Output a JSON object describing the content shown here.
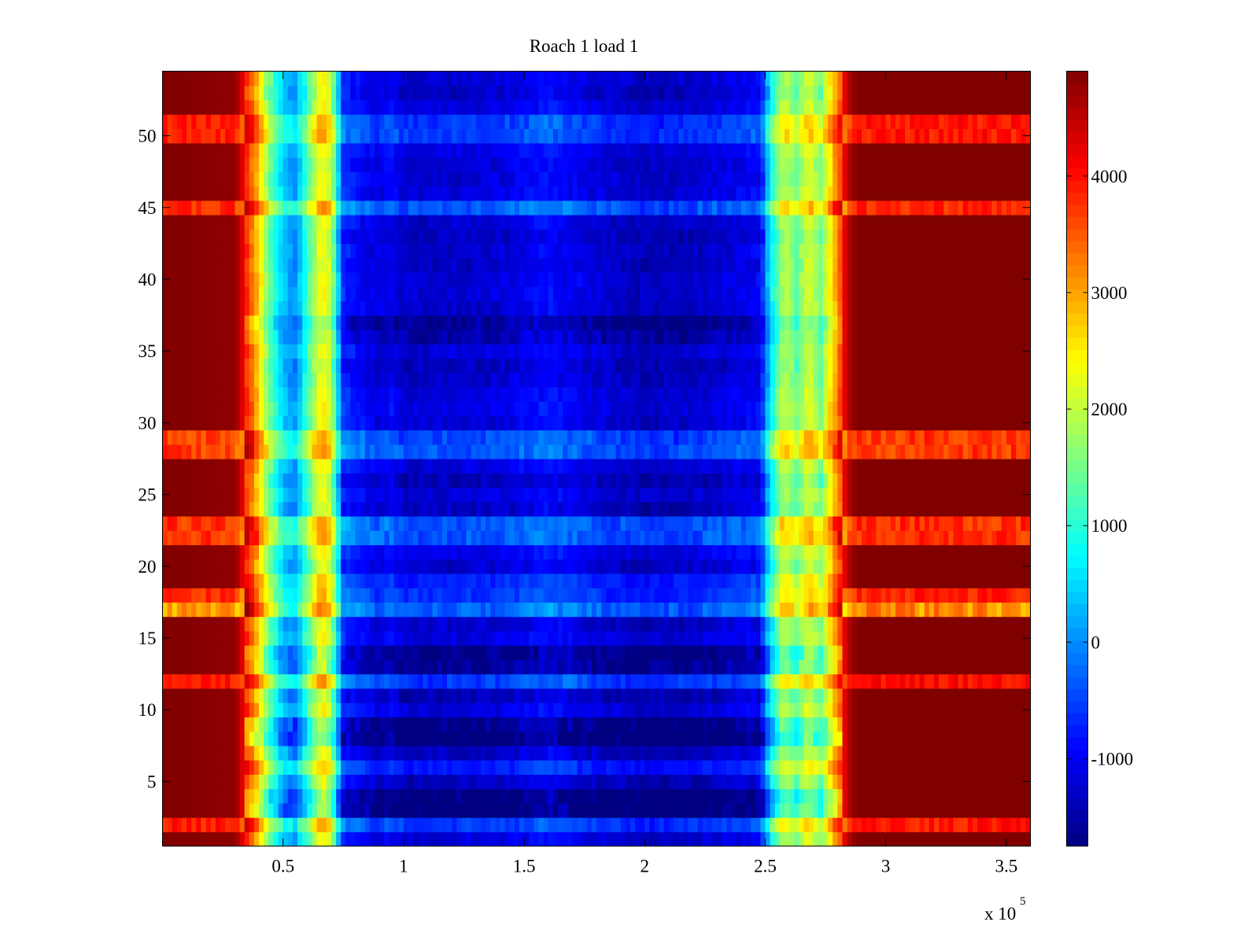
{
  "chart_data": {
    "type": "heatmap",
    "title": "Roach 1 load 1",
    "xlabel": "",
    "ylabel": "",
    "colormap": "jet",
    "x_range": [
      0,
      360000
    ],
    "y_range": [
      0.5,
      54.5
    ],
    "rows": 54,
    "clim": [
      -1750,
      4900
    ],
    "x_ticks": [
      50000,
      100000,
      150000,
      200000,
      250000,
      300000,
      350000
    ],
    "x_tick_labels": [
      "0.5",
      "1",
      "1.5",
      "2",
      "2.5",
      "3",
      "3.5"
    ],
    "x_exponent_label": "x 10",
    "x_exponent_power": "5",
    "y_ticks": [
      5,
      10,
      15,
      20,
      25,
      30,
      35,
      40,
      45,
      50
    ],
    "y_tick_labels": [
      "5",
      "10",
      "15",
      "20",
      "25",
      "30",
      "35",
      "40",
      "45",
      "50"
    ],
    "colorbar": {
      "ticks": [
        -1000,
        0,
        1000,
        2000,
        3000,
        4000
      ],
      "tick_labels": [
        "-1000",
        "0",
        "1000",
        "2000",
        "3000",
        "4000"
      ]
    },
    "column_profile": {
      "x": [
        0,
        30000,
        38000,
        44000,
        50000,
        55000,
        60000,
        66000,
        70000,
        75000,
        90000,
        95000,
        100000,
        140000,
        160000,
        180000,
        200000,
        220000,
        248000,
        252000,
        258000,
        263000,
        268000,
        273000,
        278000,
        284000,
        288000,
        360000
      ],
      "values": [
        4900,
        4800,
        3500,
        1800,
        600,
        300,
        1400,
        2800,
        2200,
        -400,
        -900,
        -700,
        -1000,
        -900,
        -600,
        -900,
        -1100,
        -1000,
        -700,
        900,
        2300,
        1700,
        2500,
        1800,
        3000,
        4500,
        4900,
        4900
      ]
    },
    "row_variation": {
      "rows": [
        1,
        2,
        3,
        4,
        5,
        6,
        7,
        8,
        9,
        10,
        11,
        12,
        13,
        14,
        15,
        16,
        17,
        18,
        19,
        20,
        21,
        22,
        23,
        24,
        25,
        26,
        27,
        28,
        29,
        30,
        31,
        32,
        33,
        34,
        35,
        36,
        37,
        38,
        39,
        40,
        41,
        42,
        43,
        44,
        45,
        46,
        47,
        48,
        49,
        50,
        51,
        52,
        53,
        54
      ],
      "offset": [
        -250,
        350,
        -900,
        -900,
        -400,
        150,
        -350,
        -1000,
        -800,
        -200,
        -450,
        400,
        -650,
        -750,
        -200,
        -350,
        650,
        300,
        200,
        -300,
        -100,
        550,
        550,
        -400,
        -250,
        -450,
        -200,
        550,
        450,
        -250,
        -150,
        -200,
        -350,
        -400,
        -250,
        -500,
        -700,
        -300,
        -250,
        -250,
        -350,
        -300,
        -400,
        -300,
        550,
        -200,
        -250,
        -250,
        -150,
        400,
        350,
        -200,
        -350,
        -250
      ],
      "edge_cooling": [
        0,
        1200,
        0,
        0,
        0,
        0,
        0,
        0,
        0,
        0,
        0,
        1100,
        0,
        0,
        0,
        0,
        2200,
        1300,
        0,
        0,
        0,
        1400,
        1400,
        0,
        0,
        0,
        0,
        1500,
        1500,
        0,
        0,
        0,
        0,
        0,
        0,
        0,
        0,
        0,
        0,
        0,
        0,
        0,
        0,
        0,
        1300,
        0,
        0,
        0,
        0,
        1200,
        1200,
        0,
        0,
        0
      ]
    }
  }
}
